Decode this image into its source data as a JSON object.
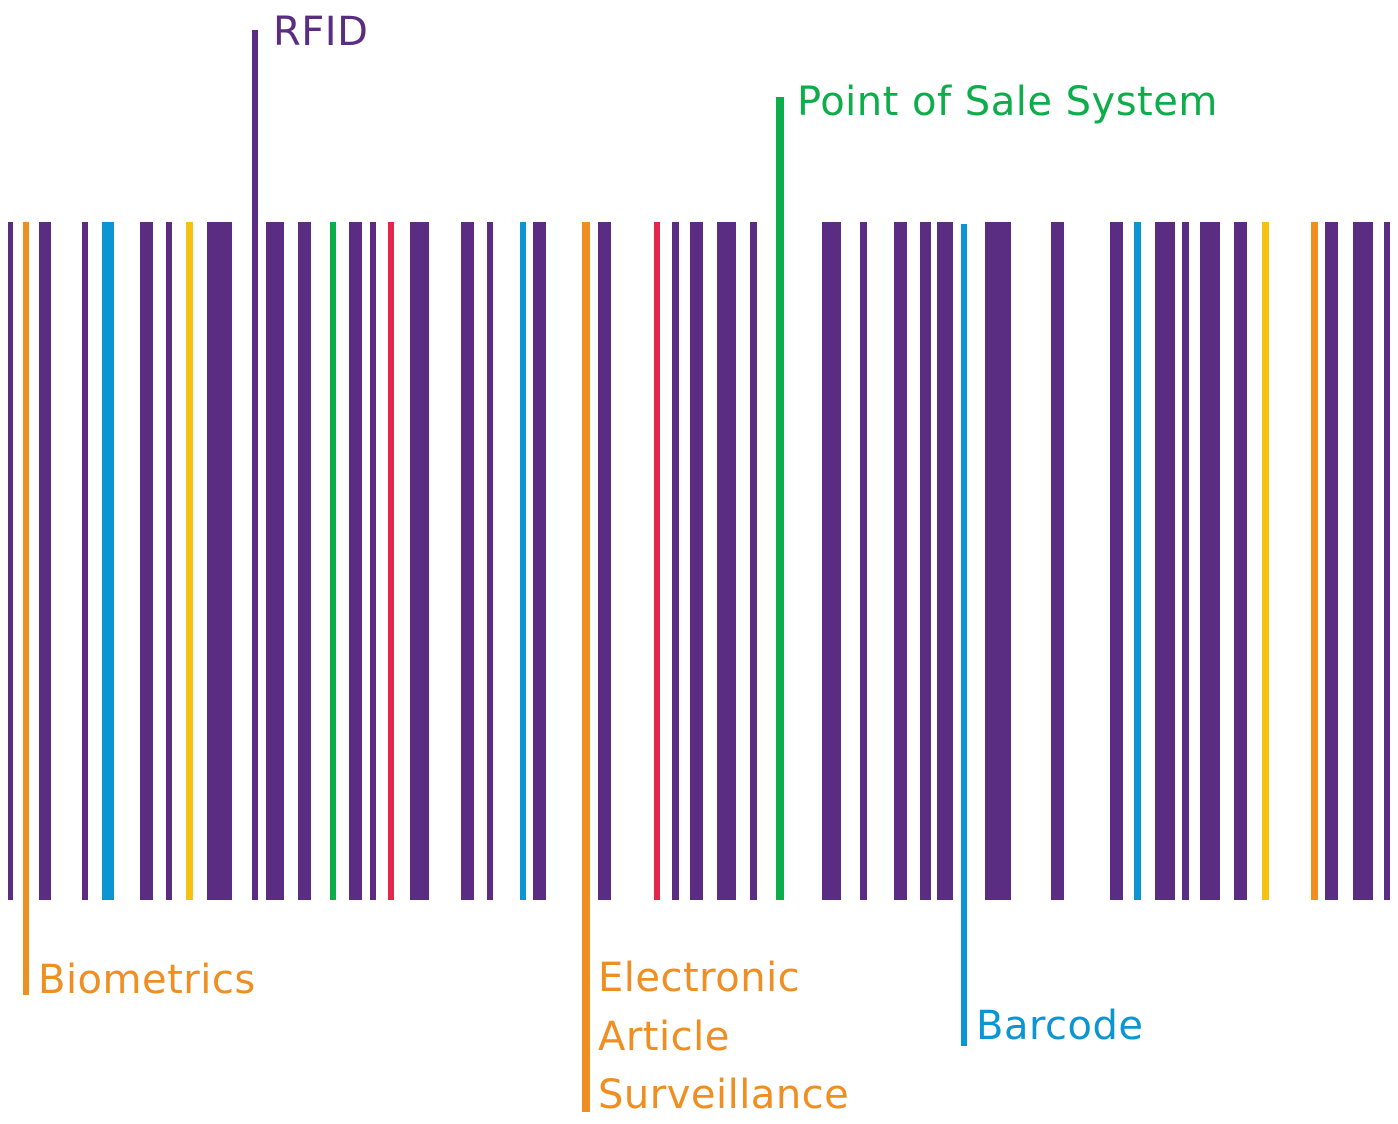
{
  "colors": {
    "purple": "#5b2d82",
    "orange": "#ef8f22",
    "blue": "#0b96d3",
    "yellow": "#f6c211",
    "green": "#0ead4b",
    "red": "#e3264a"
  },
  "labels": {
    "rfid": "RFID",
    "point_of_sale": "Point of Sale System",
    "biometrics": "Biometrics",
    "eas_line1": "Electronic",
    "eas_line2": "Article",
    "eas_line3": "Surveillance",
    "barcode": "Barcode"
  }
}
